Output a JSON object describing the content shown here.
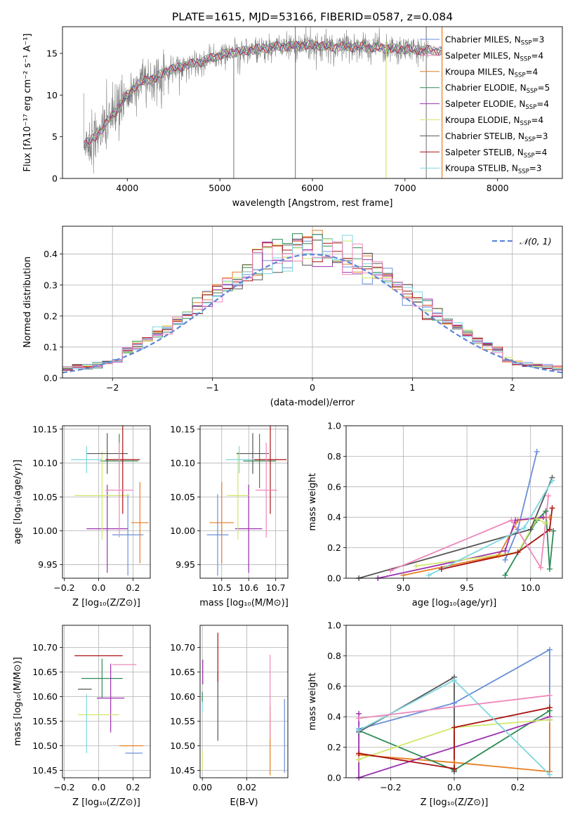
{
  "title": "PLATE=1615, MJD=53166, FIBERID=0587, z=0.084",
  "colors": [
    "#6a8fd9",
    "#e67e22",
    "#2e8b57",
    "#9b30b0",
    "#cfe86a",
    "#555555",
    "#aa1111",
    "#7fd6e0",
    "#ee88bb"
  ],
  "chart_data": [
    {
      "id": "spectrum",
      "type": "line",
      "xlabel": "wavelength [Angstrom, rest frame]",
      "ylabel": "Flux [fλ10⁻¹⁷ erg cm⁻² s⁻¹ A⁻¹]",
      "xlim": [
        3300,
        8700
      ],
      "ylim": [
        0,
        18.2
      ],
      "xticks": [
        4000,
        5000,
        6000,
        7000,
        8000
      ],
      "yticks": [
        0,
        5,
        10,
        15
      ],
      "grid": false,
      "legend_position": "right",
      "legend": [
        {
          "label": "Chabrier MILES, N",
          "sub": "SSP",
          "tail": "=3",
          "color": "#6a8fd9"
        },
        {
          "label": "Salpeter MILES, N",
          "sub": "SSP",
          "tail": "=4",
          "color": "#ee88bb"
        },
        {
          "label": "Kroupa MILES, N",
          "sub": "SSP",
          "tail": "=4",
          "color": "#e67e22"
        },
        {
          "label": "Chabrier ELODIE, N",
          "sub": "SSP",
          "tail": "=5",
          "color": "#2e8b57"
        },
        {
          "label": "Salpeter ELODIE, N",
          "sub": "SSP",
          "tail": "=4",
          "color": "#9b30b0"
        },
        {
          "label": "Kroupa ELODIE, N",
          "sub": "SSP",
          "tail": "=4",
          "color": "#cfe86a"
        },
        {
          "label": "Chabrier STELIB, N",
          "sub": "SSP",
          "tail": "=3",
          "color": "#555555"
        },
        {
          "label": "Salpeter STELIB, N",
          "sub": "SSP",
          "tail": "=4",
          "color": "#aa1111"
        },
        {
          "label": "Kroupa STELIB, N",
          "sub": "SSP",
          "tail": "=3",
          "color": "#7fd6e0"
        }
      ],
      "continuum": {
        "x": [
          3530,
          3600,
          3700,
          3800,
          3900,
          4000,
          4100,
          4200,
          4300,
          4400,
          4600,
          4800,
          5000,
          5200,
          5400,
          5600,
          5800,
          6000,
          6200,
          6500,
          6800,
          7000,
          7400
        ],
        "y": [
          4.0,
          4.5,
          5.5,
          7.0,
          8.5,
          10.0,
          11.2,
          11.8,
          12.0,
          12.8,
          13.5,
          14.0,
          14.8,
          15.2,
          15.5,
          15.8,
          15.9,
          16.0,
          15.8,
          15.8,
          15.6,
          15.5,
          15.3
        ]
      },
      "model_end": 7400,
      "data_end": 7250,
      "spikes": [
        {
          "x": 5150,
          "top": 15.0,
          "color": "#888888"
        },
        {
          "x": 5815,
          "top": 18.2,
          "color": "#888888"
        },
        {
          "x": 6795,
          "top": 16.5,
          "color": "#cfe86a"
        },
        {
          "x": 7230,
          "top": 18.2,
          "color": "#888888"
        },
        {
          "x": 7400,
          "top": 18.2,
          "color": "#e67e22"
        }
      ]
    },
    {
      "id": "residuals",
      "type": "line",
      "xlabel": "(data-model)/error",
      "ylabel": "Normed distribution",
      "xlim": [
        -2.5,
        2.5
      ],
      "ylim": [
        0,
        0.49
      ],
      "xticks": [
        -2,
        -1,
        0,
        1,
        2
      ],
      "yticks": [
        0.0,
        0.1,
        0.2,
        0.3,
        0.4
      ],
      "grid": true,
      "legend_position": "top-right",
      "legend_label": "𝒩(0, 1)",
      "normal_color": "#5b86d6",
      "bins": {
        "start": -2.5,
        "width": 0.1
      }
    },
    {
      "id": "age-vs-Z",
      "type": "scatter",
      "xlabel": "Z [log₁₀(Z/Z⊙)]",
      "ylabel": "age  [log₁₀(age/yr)]",
      "xlim": [
        -0.21,
        0.3
      ],
      "ylim": [
        9.93,
        10.155
      ],
      "xticks": [
        -0.2,
        0.0,
        0.2
      ],
      "yticks": [
        9.95,
        10.0,
        10.05,
        10.1,
        10.15
      ],
      "grid": true,
      "points": [
        {
          "x": 0.17,
          "y": 9.994,
          "xerr": 0.09,
          "yerr": 0.06,
          "color": "#6a8fd9"
        },
        {
          "x": 0.24,
          "y": 10.012,
          "xerr": 0.05,
          "yerr": 0.06,
          "color": "#e67e22"
        },
        {
          "x": 0.12,
          "y": 10.103,
          "xerr": 0.11,
          "yerr": 0.04,
          "color": "#2e8b57"
        },
        {
          "x": 0.05,
          "y": 10.003,
          "xerr": 0.12,
          "yerr": 0.065,
          "color": "#9b30b0"
        },
        {
          "x": 0.02,
          "y": 10.052,
          "xerr": 0.16,
          "yerr": 0.065,
          "color": "#cfe86a"
        },
        {
          "x": 0.05,
          "y": 10.114,
          "xerr": 0.12,
          "yerr": 0.03,
          "color": "#555555"
        },
        {
          "x": 0.14,
          "y": 10.105,
          "xerr": 0.1,
          "yerr": 0.08,
          "color": "#aa1111"
        },
        {
          "x": -0.07,
          "y": 10.105,
          "xerr": 0.09,
          "yerr": 0.02,
          "color": "#7fd6e0"
        },
        {
          "x": 0.12,
          "y": 10.06,
          "xerr": 0.08,
          "yerr": 0.07,
          "color": "#ee88bb"
        }
      ]
    },
    {
      "id": "age-vs-mass",
      "type": "scatter",
      "xlabel": "mass [log₁₀(M/M⊙)]",
      "ylabel": "",
      "xlim": [
        10.42,
        10.745
      ],
      "ylim": [
        9.93,
        10.155
      ],
      "xticks": [
        10.5,
        10.6,
        10.7
      ],
      "yticks": [
        9.95,
        10.0,
        10.05,
        10.1,
        10.15
      ],
      "grid": true,
      "points": [
        {
          "x": 10.485,
          "y": 9.994,
          "xerr": 0.04,
          "yerr": 0.06,
          "color": "#6a8fd9"
        },
        {
          "x": 10.5,
          "y": 10.012,
          "xerr": 0.045,
          "yerr": 0.06,
          "color": "#e67e22"
        },
        {
          "x": 10.64,
          "y": 10.103,
          "xerr": 0.06,
          "yerr": 0.04,
          "color": "#2e8b57"
        },
        {
          "x": 10.6,
          "y": 10.003,
          "xerr": 0.05,
          "yerr": 0.065,
          "color": "#9b30b0"
        },
        {
          "x": 10.56,
          "y": 10.052,
          "xerr": 0.04,
          "yerr": 0.065,
          "color": "#cfe86a"
        },
        {
          "x": 10.615,
          "y": 10.114,
          "xerr": 0.06,
          "yerr": 0.03,
          "color": "#555555"
        },
        {
          "x": 10.68,
          "y": 10.105,
          "xerr": 0.06,
          "yerr": 0.08,
          "color": "#aa1111"
        },
        {
          "x": 10.565,
          "y": 10.105,
          "xerr": 0.05,
          "yerr": 0.02,
          "color": "#7fd6e0"
        },
        {
          "x": 10.665,
          "y": 10.06,
          "xerr": 0.04,
          "yerr": 0.07,
          "color": "#ee88bb"
        }
      ]
    },
    {
      "id": "weight-vs-age",
      "type": "line",
      "xlabel": "age  [log₁₀(age/yr)]",
      "ylabel": "mass weight",
      "xlim": [
        8.55,
        10.25
      ],
      "ylim": [
        0,
        1.0
      ],
      "xticks": [
        9.0,
        9.5,
        10.0
      ],
      "yticks": [
        0.0,
        0.2,
        0.4,
        0.6,
        0.8,
        1.0
      ],
      "grid": true,
      "series": [
        {
          "color": "#6a8fd9",
          "x": [
            9.8,
            9.9,
            10.05
          ],
          "y": [
            0.12,
            0.32,
            0.83
          ]
        },
        {
          "color": "#e67e22",
          "x": [
            9.0,
            9.75,
            9.9,
            10.15
          ],
          "y": [
            0.02,
            0.15,
            0.38,
            0.4
          ]
        },
        {
          "color": "#2e8b57",
          "x": [
            9.8,
            10.05,
            10.12,
            10.15,
            10.18
          ],
          "y": [
            0.02,
            0.38,
            0.44,
            0.06,
            0.31
          ]
        },
        {
          "color": "#9b30b0",
          "x": [
            8.8,
            9.8,
            9.88,
            10.1
          ],
          "y": [
            0.0,
            0.18,
            0.38,
            0.4
          ]
        },
        {
          "color": "#cfe86a",
          "x": [
            9.1,
            9.9,
            10.05,
            10.12
          ],
          "y": [
            0.08,
            0.17,
            0.39,
            0.36
          ]
        },
        {
          "color": "#555555",
          "x": [
            8.65,
            10.0,
            10.17
          ],
          "y": [
            0.0,
            0.32,
            0.66
          ]
        },
        {
          "color": "#aa1111",
          "x": [
            9.3,
            9.9,
            10.15,
            10.17
          ],
          "y": [
            0.06,
            0.17,
            0.32,
            0.46
          ]
        },
        {
          "color": "#7fd6e0",
          "x": [
            9.2,
            9.95,
            10.17
          ],
          "y": [
            0.02,
            0.33,
            0.64
          ]
        },
        {
          "color": "#ee88bb",
          "x": [
            8.9,
            9.85,
            10.08,
            10.14
          ],
          "y": [
            0.05,
            0.38,
            0.07,
            0.54
          ]
        }
      ]
    },
    {
      "id": "mass-vs-Z",
      "type": "scatter",
      "xlabel": "Z [log₁₀(Z/Z⊙)]",
      "ylabel": "mass [log₁₀(M/M⊙)]",
      "xlim": [
        -0.21,
        0.3
      ],
      "ylim": [
        10.435,
        10.745
      ],
      "xticks": [
        -0.2,
        0.0,
        0.2
      ],
      "yticks": [
        10.45,
        10.5,
        10.55,
        10.6,
        10.65,
        10.7
      ],
      "grid": true,
      "points": [
        {
          "x": 0.205,
          "y": 10.485,
          "xerr": 0.05,
          "yerr": 0.0,
          "color": "#6a8fd9"
        },
        {
          "x": 0.19,
          "y": 10.5,
          "xerr": 0.07,
          "yerr": 0.0,
          "color": "#e67e22"
        },
        {
          "x": 0.02,
          "y": 10.637,
          "xerr": 0.12,
          "yerr": 0.04,
          "color": "#2e8b57"
        },
        {
          "x": 0.07,
          "y": 10.597,
          "xerr": 0.08,
          "yerr": 0.07,
          "color": "#9b30b0"
        },
        {
          "x": 0.0,
          "y": 10.563,
          "xerr": 0.12,
          "yerr": 0.0,
          "color": "#cfe86a"
        },
        {
          "x": -0.08,
          "y": 10.615,
          "xerr": 0.04,
          "yerr": 0.0,
          "color": "#555555"
        },
        {
          "x": 0.0,
          "y": 10.683,
          "xerr": 0.14,
          "yerr": 0.0,
          "color": "#aa1111"
        },
        {
          "x": -0.07,
          "y": 10.545,
          "xerr": 0.0,
          "yerr": 0.06,
          "color": "#7fd6e0"
        },
        {
          "x": 0.15,
          "y": 10.665,
          "xerr": 0.07,
          "yerr": 0.0,
          "color": "#ee88bb"
        }
      ]
    },
    {
      "id": "mass-vs-EBV",
      "type": "scatter",
      "xlabel": "E(B-V)",
      "ylabel": "",
      "xlim": [
        -0.001,
        0.0385
      ],
      "ylim": [
        10.435,
        10.745
      ],
      "xticks": [
        0.0,
        0.02
      ],
      "yticks": [
        10.45,
        10.5,
        10.55,
        10.6,
        10.65,
        10.7
      ],
      "grid": true,
      "points": [
        {
          "x": 0.037,
          "y": 10.52,
          "xerr": 0.0,
          "yerr": 0.075,
          "color": "#6a8fd9"
        },
        {
          "x": 0.0305,
          "y": 10.51,
          "xerr": 0.0,
          "yerr": 0.07,
          "color": "#e67e22"
        },
        {
          "x": 0.0,
          "y": 10.6,
          "xerr": 0.0,
          "yerr": 0.01,
          "color": "#2e8b57"
        },
        {
          "x": 0.0002,
          "y": 10.65,
          "xerr": 0.0,
          "yerr": 0.025,
          "color": "#9b30b0"
        },
        {
          "x": 0.0,
          "y": 10.47,
          "xerr": 0.0,
          "yerr": 0.02,
          "color": "#cfe86a"
        },
        {
          "x": 0.007,
          "y": 10.58,
          "xerr": 0.0,
          "yerr": 0.07,
          "color": "#555555"
        },
        {
          "x": 0.007,
          "y": 10.68,
          "xerr": 0.0,
          "yerr": 0.05,
          "color": "#aa1111"
        },
        {
          "x": 0.0,
          "y": 10.58,
          "xerr": 0.0,
          "yerr": 0.01,
          "color": "#7fd6e0"
        },
        {
          "x": 0.0305,
          "y": 10.6,
          "xerr": 0.0,
          "yerr": 0.085,
          "color": "#ee88bb"
        }
      ]
    },
    {
      "id": "weight-vs-Z",
      "type": "line",
      "xlabel": "Z [log₁₀(Z/Z⊙)]",
      "ylabel": "mass weight",
      "xlim": [
        -0.34,
        0.34
      ],
      "ylim": [
        0,
        1.0
      ],
      "xticks": [
        -0.2,
        0.0,
        0.2
      ],
      "yticks": [
        0.0,
        0.2,
        0.4,
        0.6,
        0.8,
        1.0
      ],
      "grid": true,
      "series": [
        {
          "color": "#6a8fd9",
          "x": [
            -0.3,
            0.0,
            0.3,
            0.3
          ],
          "y": [
            0.32,
            0.49,
            0.84,
            0.04
          ]
        },
        {
          "color": "#e67e22",
          "x": [
            -0.3,
            0.0,
            0.3,
            0.3
          ],
          "y": [
            0.15,
            0.1,
            0.04,
            0.46
          ]
        },
        {
          "color": "#2e8b57",
          "x": [
            -0.3,
            0.0,
            0.3,
            0.3
          ],
          "y": [
            0.31,
            0.05,
            0.44,
            0.38
          ]
        },
        {
          "color": "#9b30b0",
          "x": [
            -0.3,
            -0.3,
            0.3,
            0.3
          ],
          "y": [
            0.42,
            0.0,
            0.4,
            0.38
          ]
        },
        {
          "color": "#cfe86a",
          "x": [
            -0.3,
            0.0,
            0.3
          ],
          "y": [
            0.12,
            0.33,
            0.38
          ]
        },
        {
          "color": "#555555",
          "x": [
            -0.3,
            0.0,
            0.0
          ],
          "y": [
            0.3,
            0.66,
            0.04
          ]
        },
        {
          "color": "#aa1111",
          "x": [
            -0.3,
            0.0,
            0.0,
            0.3
          ],
          "y": [
            0.16,
            0.06,
            0.33,
            0.46
          ]
        },
        {
          "color": "#7fd6e0",
          "x": [
            -0.3,
            0.0,
            0.3
          ],
          "y": [
            0.31,
            0.64,
            0.02
          ]
        },
        {
          "color": "#ee88bb",
          "x": [
            -0.3,
            0.3
          ],
          "y": [
            0.39,
            0.54
          ]
        }
      ]
    }
  ]
}
